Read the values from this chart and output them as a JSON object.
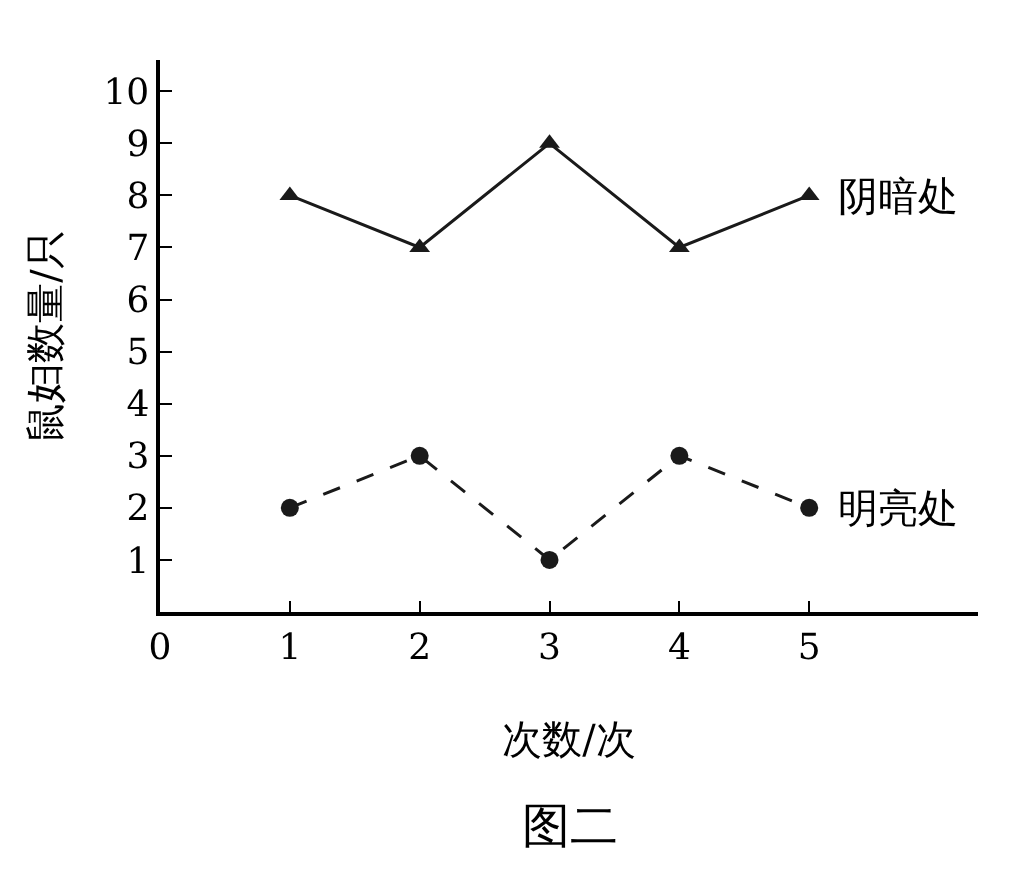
{
  "chart_data": {
    "type": "line",
    "xlabel": "次数/次",
    "ylabel": "鼠妇数量/只",
    "x": [
      1,
      2,
      3,
      4,
      5
    ],
    "series": [
      {
        "name": "阴暗处",
        "color": "#1a1a1a",
        "values": [
          8,
          7,
          9,
          7,
          8
        ],
        "marker": "triangle",
        "line_style": "solid"
      },
      {
        "name": "明亮处",
        "color": "#1a1a1a",
        "values": [
          2,
          3,
          1,
          3,
          2
        ],
        "marker": "circle",
        "line_style": "dashed"
      }
    ],
    "xlim": [
      0,
      6.3
    ],
    "ylim": [
      0,
      10.6
    ],
    "xticks": [
      0,
      1,
      2,
      3,
      4,
      5
    ],
    "yticks": [
      1,
      2,
      3,
      4,
      5,
      6,
      7,
      8,
      9,
      10
    ],
    "grid": false,
    "legend": false,
    "annotations": [
      "图二"
    ]
  }
}
